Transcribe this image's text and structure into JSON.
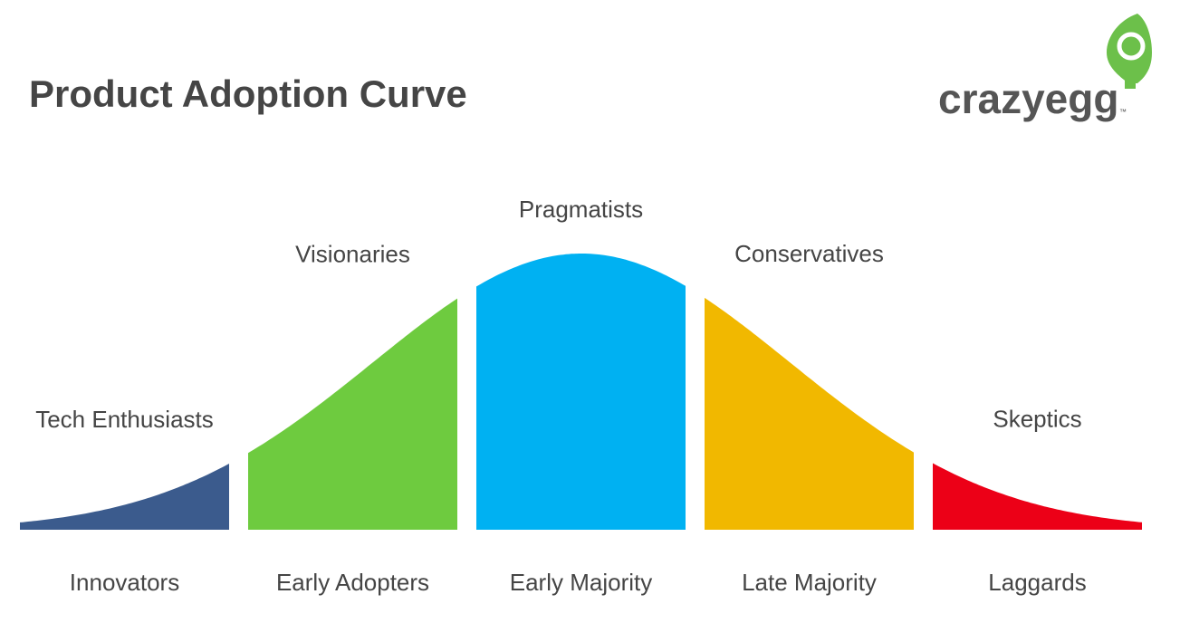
{
  "header": {
    "title": "Product Adoption Curve",
    "logo": "crazyegg",
    "logo_mark": "™"
  },
  "segments": [
    {
      "label": "Innovators",
      "group": "Tech Enthusiasts"
    },
    {
      "label": "Early Adopters",
      "group": "Visionaries"
    },
    {
      "label": "Early Majority",
      "group": "Pragmatists"
    },
    {
      "label": "Late Majority",
      "group": "Conservatives"
    },
    {
      "label": "Laggards",
      "group": "Skeptics"
    }
  ]
}
